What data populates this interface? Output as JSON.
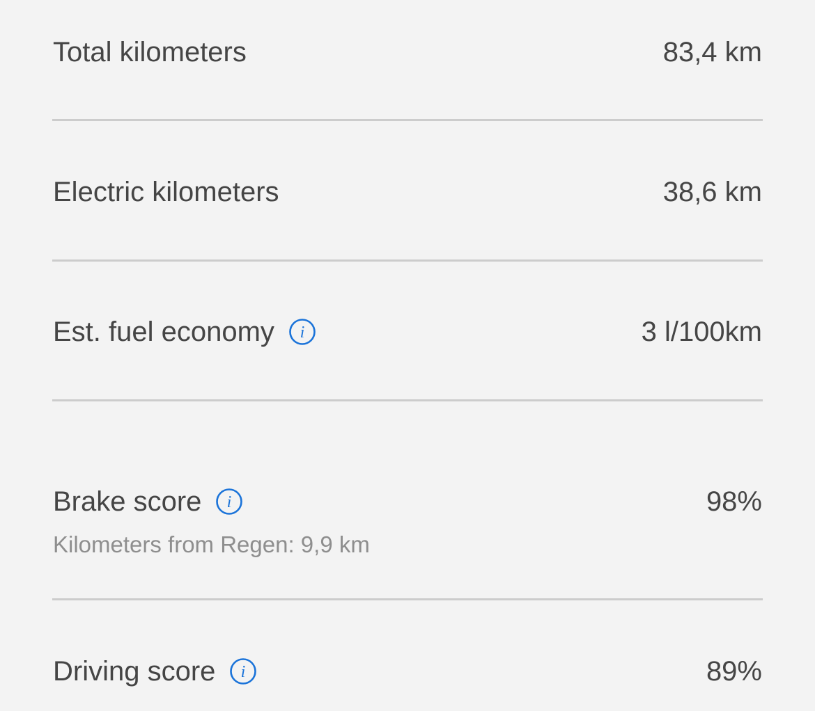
{
  "rows": [
    {
      "label": "Total kilometers",
      "value": "83,4 km",
      "info": false
    },
    {
      "label": "Electric kilometers",
      "value": "38,6 km",
      "info": false
    },
    {
      "label": "Est. fuel economy",
      "value": "3 l/100km",
      "info": true
    },
    {
      "label": "Brake score",
      "value": "98%",
      "info": true,
      "sub": "Kilometers from Regen: 9,9 km"
    },
    {
      "label": "Driving score",
      "value": "89%",
      "info": true
    }
  ],
  "colors": {
    "background": "#f3f3f3",
    "text": "#454545",
    "subtext": "#8e8e8e",
    "divider": "#cccccc",
    "info_accent": "#1a73d9"
  },
  "icons": {
    "info": "info-circle-icon"
  }
}
